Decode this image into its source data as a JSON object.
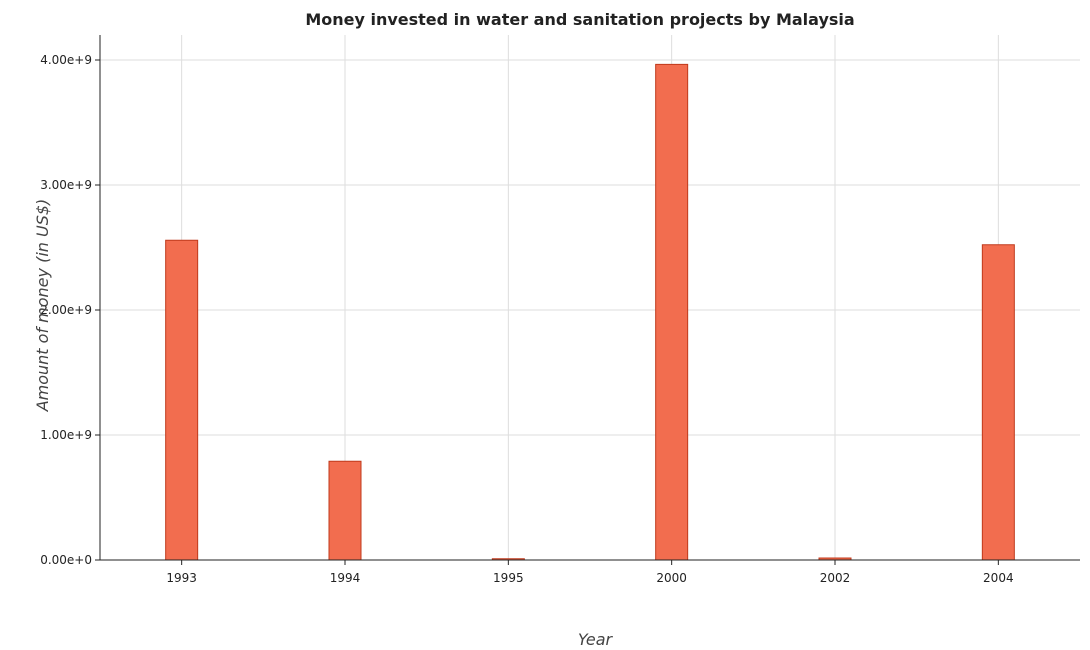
{
  "chart_data": {
    "type": "bar",
    "title": "Money invested in water and sanitation projects by Malaysia",
    "xlabel": "Year",
    "ylabel": "Amount of money (in US$)",
    "categories": [
      "1993",
      "1994",
      "1995",
      "2000",
      "2002",
      "2004"
    ],
    "values": [
      2558000000,
      790000000,
      10000000,
      3965000000,
      16000000,
      2522000000
    ],
    "ylim": [
      0,
      4200000000
    ],
    "yticks": [
      0,
      1000000000,
      2000000000,
      3000000000,
      4000000000
    ],
    "ytick_labels": [
      "0.00e+0",
      "1.00e+9",
      "2.00e+9",
      "3.00e+9",
      "4.00e+9"
    ],
    "grid": true,
    "colors": {
      "bar_fill": "#f26d4f",
      "bar_stroke": "#c0391b"
    }
  }
}
